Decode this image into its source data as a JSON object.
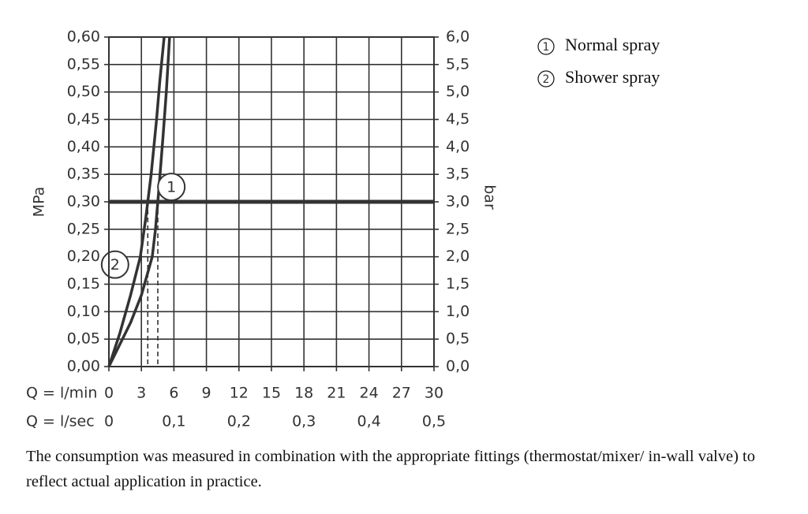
{
  "chart_data": {
    "type": "line",
    "xlabel": "Q = l/min",
    "x2label": "Q = l/sec",
    "ylabel": "MPa",
    "y2label": "bar",
    "xlim": [
      0,
      30
    ],
    "xticks": [
      0,
      3,
      6,
      9,
      12,
      15,
      18,
      21,
      24,
      27,
      30
    ],
    "x2lim": [
      0,
      0.5
    ],
    "x2ticks": [
      0,
      {
        "value": 0.1,
        "label": "0,1"
      },
      {
        "value": 0.2,
        "label": "0,2"
      },
      {
        "value": 0.3,
        "label": "0,3"
      },
      {
        "value": 0.4,
        "label": "0,4"
      },
      {
        "value": 0.5,
        "label": "0,5"
      }
    ],
    "ylim": [
      0,
      0.6
    ],
    "yticks": [
      {
        "value": 0,
        "label": "0,00"
      },
      {
        "value": 0.05,
        "label": "0,05"
      },
      {
        "value": 0.1,
        "label": "0,10"
      },
      {
        "value": 0.15,
        "label": "0,15"
      },
      {
        "value": 0.2,
        "label": "0,20"
      },
      {
        "value": 0.25,
        "label": "0,25"
      },
      {
        "value": 0.3,
        "label": "0,30"
      },
      {
        "value": 0.35,
        "label": "0,35"
      },
      {
        "value": 0.4,
        "label": "0,40"
      },
      {
        "value": 0.45,
        "label": "0,45"
      },
      {
        "value": 0.5,
        "label": "0,50"
      },
      {
        "value": 0.55,
        "label": "0,55"
      },
      {
        "value": 0.6,
        "label": "0,60"
      }
    ],
    "y2lim": [
      0,
      6
    ],
    "y2ticks": [
      {
        "value": 0,
        "label": "0,0"
      },
      {
        "value": 0.5,
        "label": "0,5"
      },
      {
        "value": 1,
        "label": "1,0"
      },
      {
        "value": 1.5,
        "label": "1,5"
      },
      {
        "value": 2,
        "label": "2,0"
      },
      {
        "value": 2.5,
        "label": "2,5"
      },
      {
        "value": 3,
        "label": "3,0"
      },
      {
        "value": 3.5,
        "label": "3,5"
      },
      {
        "value": 4,
        "label": "4,0"
      },
      {
        "value": 4.5,
        "label": "4,5"
      },
      {
        "value": 5,
        "label": "5,0"
      },
      {
        "value": 5.5,
        "label": "5,5"
      },
      {
        "value": 6,
        "label": "6,0"
      }
    ],
    "grid": true,
    "reference_line": 0.3,
    "series": [
      {
        "name": "Normal spray",
        "label": "1",
        "color": "#333333",
        "x": [
          0,
          1,
          2,
          3,
          4,
          4.3,
          4.6,
          5,
          5.3,
          5.6
        ],
        "values": [
          0,
          0.04,
          0.08,
          0.13,
          0.2,
          0.25,
          0.32,
          0.42,
          0.5,
          0.6
        ]
      },
      {
        "name": "Shower spray",
        "label": "2",
        "color": "#333333",
        "x": [
          0,
          1,
          2,
          2.9,
          3.4,
          3.9,
          4.4,
          4.7,
          5.1
        ],
        "values": [
          0,
          0.06,
          0.13,
          0.2,
          0.27,
          0.35,
          0.45,
          0.52,
          0.6
        ]
      }
    ],
    "note": "The consumption was measured in combination with the appropriate fittings (thermostat/mixer/ in-wall valve) to reflect actual application in practice."
  }
}
